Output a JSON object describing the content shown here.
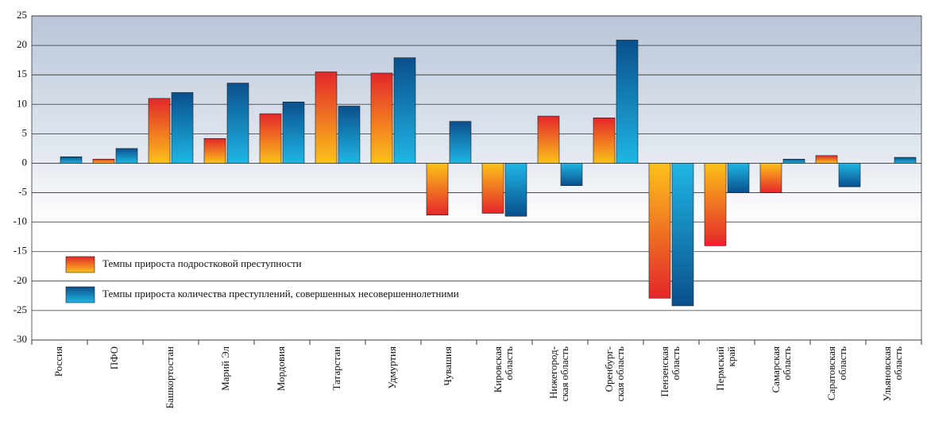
{
  "chart_data": {
    "type": "bar",
    "categories": [
      [
        "Россия"
      ],
      [
        "ПФО"
      ],
      [
        "Башкортостан"
      ],
      [
        "Марий Эл"
      ],
      [
        "Мордовия"
      ],
      [
        "Татарстан"
      ],
      [
        "Удмуртия"
      ],
      [
        "Чувашия"
      ],
      [
        "Кировская",
        "область"
      ],
      [
        "Нижегород-",
        "ская область"
      ],
      [
        "Оренбург-",
        "ская область"
      ],
      [
        "Пензенская",
        "область"
      ],
      [
        "Пермский",
        "край"
      ],
      [
        "Самарская",
        "область"
      ],
      [
        "Саратовская",
        "область"
      ],
      [
        "Ульяновская",
        "область"
      ]
    ],
    "series": [
      {
        "name": "Темпы прироста подростковой преступности",
        "color": "#e4262a",
        "values": [
          null,
          0.7,
          11,
          4.2,
          8.4,
          15.5,
          15.3,
          -8.8,
          -8.5,
          8,
          7.7,
          -22.9,
          -14,
          -5,
          1.3,
          null
        ]
      },
      {
        "name": "Темпы прироста количества преступлений, совершенных несовершеннолетними",
        "color": "#0a4f8c",
        "values": [
          1.1,
          2.5,
          12,
          13.6,
          10.4,
          9.7,
          17.9,
          7.1,
          -9,
          -3.8,
          20.9,
          -24.2,
          -5,
          0.7,
          -4,
          1
        ]
      }
    ],
    "ylim": [
      -30,
      25
    ],
    "yticks": [
      -30,
      -25,
      -20,
      -15,
      -10,
      -5,
      0,
      5,
      10,
      15,
      20,
      25
    ],
    "grid": true,
    "legend": "lower-left"
  }
}
